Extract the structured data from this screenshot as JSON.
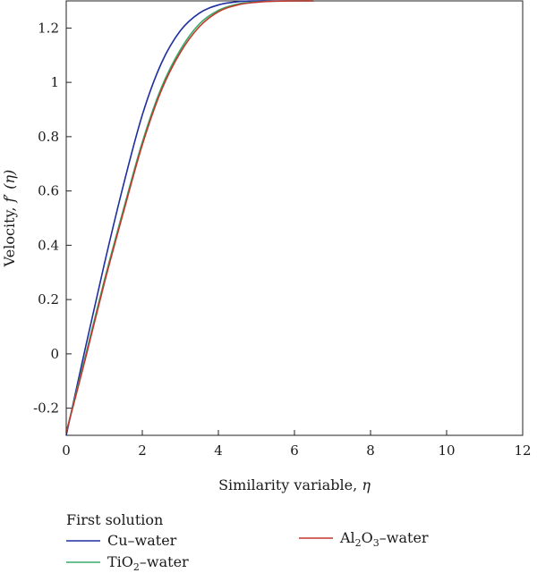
{
  "chart_data": {
    "type": "line",
    "title": "",
    "xlabel": "Similarity variable, ",
    "xlabel_symbol": "η",
    "ylabel": "Velocity, ",
    "ylabel_symbol": "f′ (η)",
    "xlim": [
      0,
      12
    ],
    "ylim": [
      -0.3,
      1.3
    ],
    "x_ticks": [
      0,
      2,
      4,
      6,
      8,
      10,
      12
    ],
    "y_ticks": [
      -0.2,
      0,
      0.2,
      0.4,
      0.6,
      0.8,
      1,
      1.2
    ],
    "x_tick_labels": [
      "0",
      "2",
      "4",
      "6",
      "8",
      "10",
      "12"
    ],
    "y_tick_labels": [
      "-0.2",
      "0",
      "0.2",
      "0.4",
      "0.6",
      "0.8",
      "1",
      "1.2"
    ],
    "grid": false,
    "legend_title": "First solution",
    "legend_position": "below",
    "series": [
      {
        "name": "Cu–water",
        "legend": {
          "pre": "Cu–water",
          "sub": "",
          "post": ""
        },
        "color": "#1f2fa0",
        "x": [
          0,
          0.5,
          1,
          1.5,
          2,
          2.5,
          3,
          3.5,
          4,
          4.5,
          5,
          5.5,
          6,
          6.5
        ],
        "y": [
          -0.3,
          0.02,
          0.33,
          0.62,
          0.88,
          1.07,
          1.19,
          1.255,
          1.285,
          1.297,
          1.3,
          1.3,
          1.3,
          1.3
        ]
      },
      {
        "name": "TiO2–water",
        "legend": {
          "pre": "TiO",
          "sub": "2",
          "post": "–water"
        },
        "color": "#3aa868",
        "x": [
          0,
          0.5,
          1,
          1.5,
          2,
          2.5,
          3,
          3.5,
          4,
          4.5,
          5,
          5.5,
          6,
          6.5
        ],
        "y": [
          -0.29,
          -0.01,
          0.27,
          0.53,
          0.78,
          0.98,
          1.12,
          1.215,
          1.265,
          1.288,
          1.296,
          1.299,
          1.3,
          1.3
        ]
      },
      {
        "name": "Al2O3–water",
        "legend": {
          "pre": "Al",
          "sub": "2",
          "mid": "O",
          "sub2": "3",
          "post": "–water"
        },
        "color": "#c0392b",
        "x": [
          0,
          0.5,
          1,
          1.5,
          2,
          2.5,
          3,
          3.5,
          4,
          4.5,
          5,
          5.5,
          6,
          6.5
        ],
        "y": [
          -0.29,
          -0.02,
          0.26,
          0.52,
          0.77,
          0.97,
          1.11,
          1.205,
          1.26,
          1.285,
          1.295,
          1.299,
          1.3,
          1.3
        ]
      }
    ]
  }
}
